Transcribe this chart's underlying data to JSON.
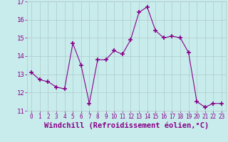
{
  "x": [
    0,
    1,
    2,
    3,
    4,
    5,
    6,
    7,
    8,
    9,
    10,
    11,
    12,
    13,
    14,
    15,
    16,
    17,
    18,
    19,
    20,
    21,
    22,
    23
  ],
  "y": [
    13.1,
    12.7,
    12.6,
    12.3,
    12.2,
    14.7,
    13.5,
    11.4,
    13.8,
    13.8,
    14.3,
    14.1,
    14.9,
    16.4,
    16.7,
    15.4,
    15.0,
    15.1,
    15.0,
    14.2,
    11.5,
    11.2,
    11.4,
    11.4
  ],
  "line_color": "#880088",
  "marker": "P",
  "marker_size": 3,
  "bg_color": "#c8ecec",
  "grid_color": "#b0c8c8",
  "xlabel": "Windchill (Refroidissement éolien,°C)",
  "xlabel_fontsize": 7.5,
  "tick_color": "#880088",
  "ylim": [
    11.0,
    17.0
  ],
  "xlim": [
    -0.5,
    23.5
  ],
  "yticks": [
    11,
    12,
    13,
    14,
    15,
    16,
    17
  ],
  "xticks": [
    0,
    1,
    2,
    3,
    4,
    5,
    6,
    7,
    8,
    9,
    10,
    11,
    12,
    13,
    14,
    15,
    16,
    17,
    18,
    19,
    20,
    21,
    22,
    23
  ]
}
